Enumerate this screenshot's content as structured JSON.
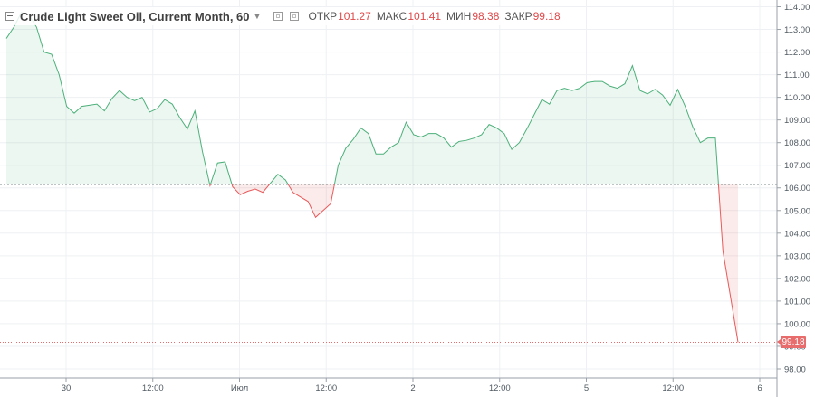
{
  "header": {
    "title": "Crude Light Sweet Oil, Current Month, 60",
    "open_label": "ОТКР",
    "open_value": "101.27",
    "high_label": "МАКС",
    "high_value": "101.41",
    "low_label": "МИН",
    "low_value": "98.38",
    "close_label": "ЗАКР",
    "close_value": "99.18"
  },
  "price_tag": "99.18",
  "chart_data": {
    "type": "area",
    "title": "Crude Light Sweet Oil, Current Month, 60",
    "x_tick_labels": [
      "30",
      "12:00",
      "Июл",
      "12:00",
      "2",
      "12:00",
      "5",
      "12:00",
      "6"
    ],
    "y_ticks": [
      98.0,
      99.0,
      100.0,
      101.0,
      102.0,
      103.0,
      104.0,
      105.0,
      106.0,
      107.0,
      108.0,
      109.0,
      110.0,
      111.0,
      112.0,
      113.0,
      114.0
    ],
    "y_tick_labels": [
      "98.00",
      "99.00",
      "100.00",
      "101.00",
      "102.00",
      "103.00",
      "104.00",
      "105.00",
      "106.00",
      "107.00",
      "108.00",
      "109.00",
      "110.00",
      "111.00",
      "112.00",
      "113.00",
      "114.00"
    ],
    "ylim": [
      97.6,
      114.3
    ],
    "baseline": 106.15,
    "last_price": 99.18,
    "grid": true,
    "series": [
      {
        "values": [
          112.6,
          113.1,
          113.75,
          113.65,
          113.1,
          112.0,
          111.9,
          111.0,
          109.6,
          109.3,
          109.6,
          109.65,
          109.7,
          109.4,
          109.95,
          110.3,
          110.0,
          109.85,
          110.0,
          109.35,
          109.5,
          109.9,
          109.7,
          109.1,
          108.6,
          109.4,
          107.6,
          106.1,
          107.1,
          107.15,
          106.05,
          105.7,
          105.85,
          105.95,
          105.8,
          106.2,
          106.6,
          106.35,
          105.8,
          105.6,
          105.4,
          104.7,
          105.0,
          105.3,
          107.0,
          107.75,
          108.15,
          108.65,
          108.4,
          107.5,
          107.5,
          107.8,
          108.0,
          108.9,
          108.35,
          108.25,
          108.4,
          108.4,
          108.2,
          107.8,
          108.05,
          108.1,
          108.2,
          108.35,
          108.8,
          108.65,
          108.4,
          107.7,
          108.0,
          108.6,
          109.25,
          109.9,
          109.7,
          110.3,
          110.4,
          110.3,
          110.4,
          110.65,
          110.7,
          110.7,
          110.5,
          110.4,
          110.6,
          111.4,
          110.3,
          110.15,
          110.35,
          110.1,
          109.65,
          110.35,
          109.6,
          108.7,
          108.0,
          108.2,
          108.2,
          103.2,
          101.2,
          99.18
        ]
      }
    ]
  }
}
